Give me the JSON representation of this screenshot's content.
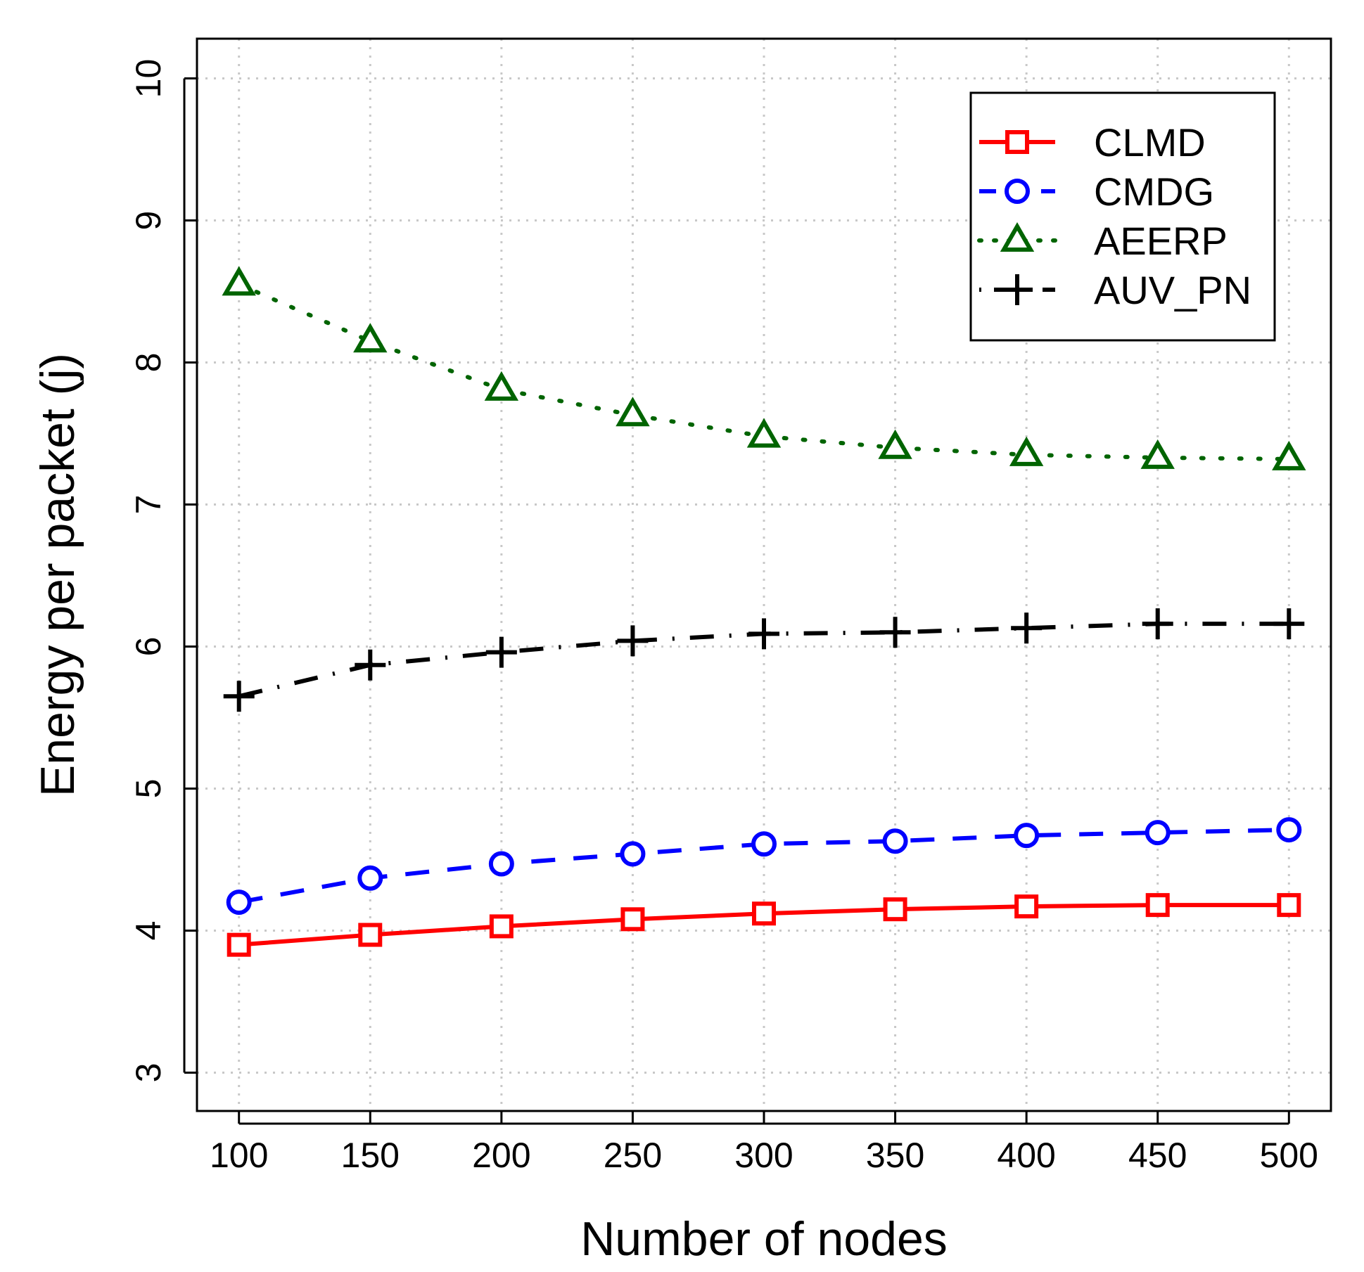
{
  "chart_data": {
    "type": "line",
    "xlabel": "Number of nodes",
    "ylabel": "Energy per packet (j)",
    "x": [
      100,
      150,
      200,
      250,
      300,
      350,
      400,
      450,
      500
    ],
    "xlim": [
      84,
      516
    ],
    "ylim": [
      2.73,
      10.28
    ],
    "xticks": [
      100,
      150,
      200,
      250,
      300,
      350,
      400,
      450,
      500
    ],
    "yticks": [
      3,
      4,
      5,
      6,
      7,
      8,
      9,
      10
    ],
    "grid": true,
    "legend_position": "top-right",
    "series": [
      {
        "name": "CLMD",
        "color": "#ff0000",
        "marker": "square",
        "line": "solid",
        "values": [
          3.9,
          3.97,
          4.03,
          4.08,
          4.12,
          4.15,
          4.17,
          4.18,
          4.18
        ]
      },
      {
        "name": "CMDG",
        "color": "#0000ff",
        "marker": "circle",
        "line": "dashed",
        "values": [
          4.2,
          4.37,
          4.47,
          4.54,
          4.61,
          4.63,
          4.67,
          4.69,
          4.71
        ]
      },
      {
        "name": "AEERP",
        "color": "#006400",
        "marker": "triangle",
        "line": "dotted",
        "values": [
          8.55,
          8.15,
          7.81,
          7.63,
          7.48,
          7.4,
          7.35,
          7.33,
          7.32
        ]
      },
      {
        "name": "AUV_PN",
        "color": "#000000",
        "marker": "plus",
        "line": "dash-dot",
        "values": [
          5.65,
          5.87,
          5.96,
          6.04,
          6.09,
          6.1,
          6.13,
          6.16,
          6.16
        ]
      }
    ]
  }
}
